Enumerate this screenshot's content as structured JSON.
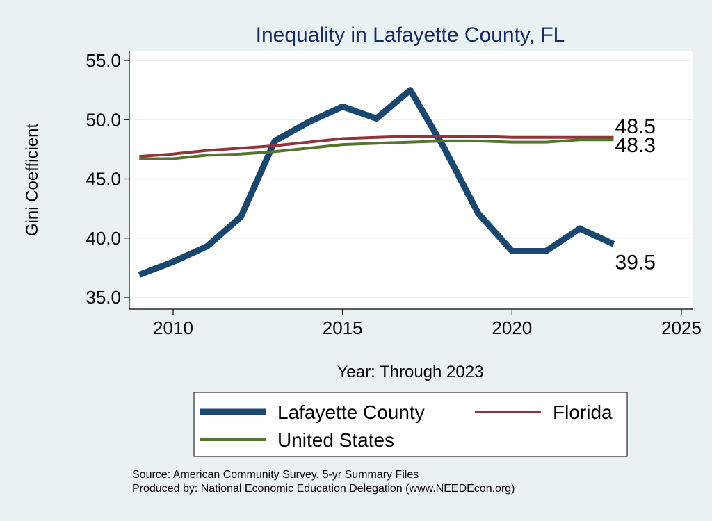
{
  "chart_data": {
    "type": "line",
    "title": "Inequality in Lafayette County, FL",
    "xlabel": "Year: Through 2023",
    "ylabel": "Gini Coefficient",
    "xlim": [
      2008.5,
      2025.5
    ],
    "ylim": [
      34.5,
      56.0
    ],
    "xticks": [
      2010,
      2015,
      2020,
      2025
    ],
    "xtick_labels": [
      "2010",
      "2015",
      "2020",
      "2025"
    ],
    "yticks": [
      35.0,
      40.0,
      45.0,
      50.0,
      55.0
    ],
    "ytick_labels": [
      "35.0",
      "40.0",
      "45.0",
      "50.0",
      "55.0"
    ],
    "grid": "horizontal",
    "x": [
      2009,
      2010,
      2011,
      2012,
      2013,
      2014,
      2015,
      2016,
      2017,
      2018,
      2019,
      2020,
      2021,
      2022,
      2023
    ],
    "series": [
      {
        "name": "Lafayette County",
        "color": "#1a476f",
        "values": [
          36.9,
          38.0,
          39.3,
          41.8,
          48.2,
          49.8,
          51.1,
          50.1,
          52.5,
          47.6,
          42.1,
          38.9,
          38.9,
          40.8,
          39.5
        ],
        "end_label": "39.5"
      },
      {
        "name": "Florida",
        "color": "#90353b",
        "values": [
          46.9,
          47.1,
          47.4,
          47.6,
          47.8,
          48.1,
          48.4,
          48.5,
          48.6,
          48.6,
          48.6,
          48.5,
          48.5,
          48.5,
          48.5
        ],
        "end_label": "48.5"
      },
      {
        "name": "United States",
        "color": "#55752f",
        "values": [
          46.7,
          46.7,
          47.0,
          47.1,
          47.3,
          47.6,
          47.9,
          48.0,
          48.1,
          48.2,
          48.2,
          48.1,
          48.1,
          48.3,
          48.3
        ],
        "end_label": "48.3"
      }
    ],
    "legend": {
      "placement": "bottom",
      "entries": [
        "Lafayette County",
        "Florida",
        "United States"
      ]
    },
    "notes": [
      "Source: American Community Survey, 5-yr Summary Files",
      "Produced by: National Economic Education Delegation (www.NEEDEcon.org)"
    ]
  }
}
